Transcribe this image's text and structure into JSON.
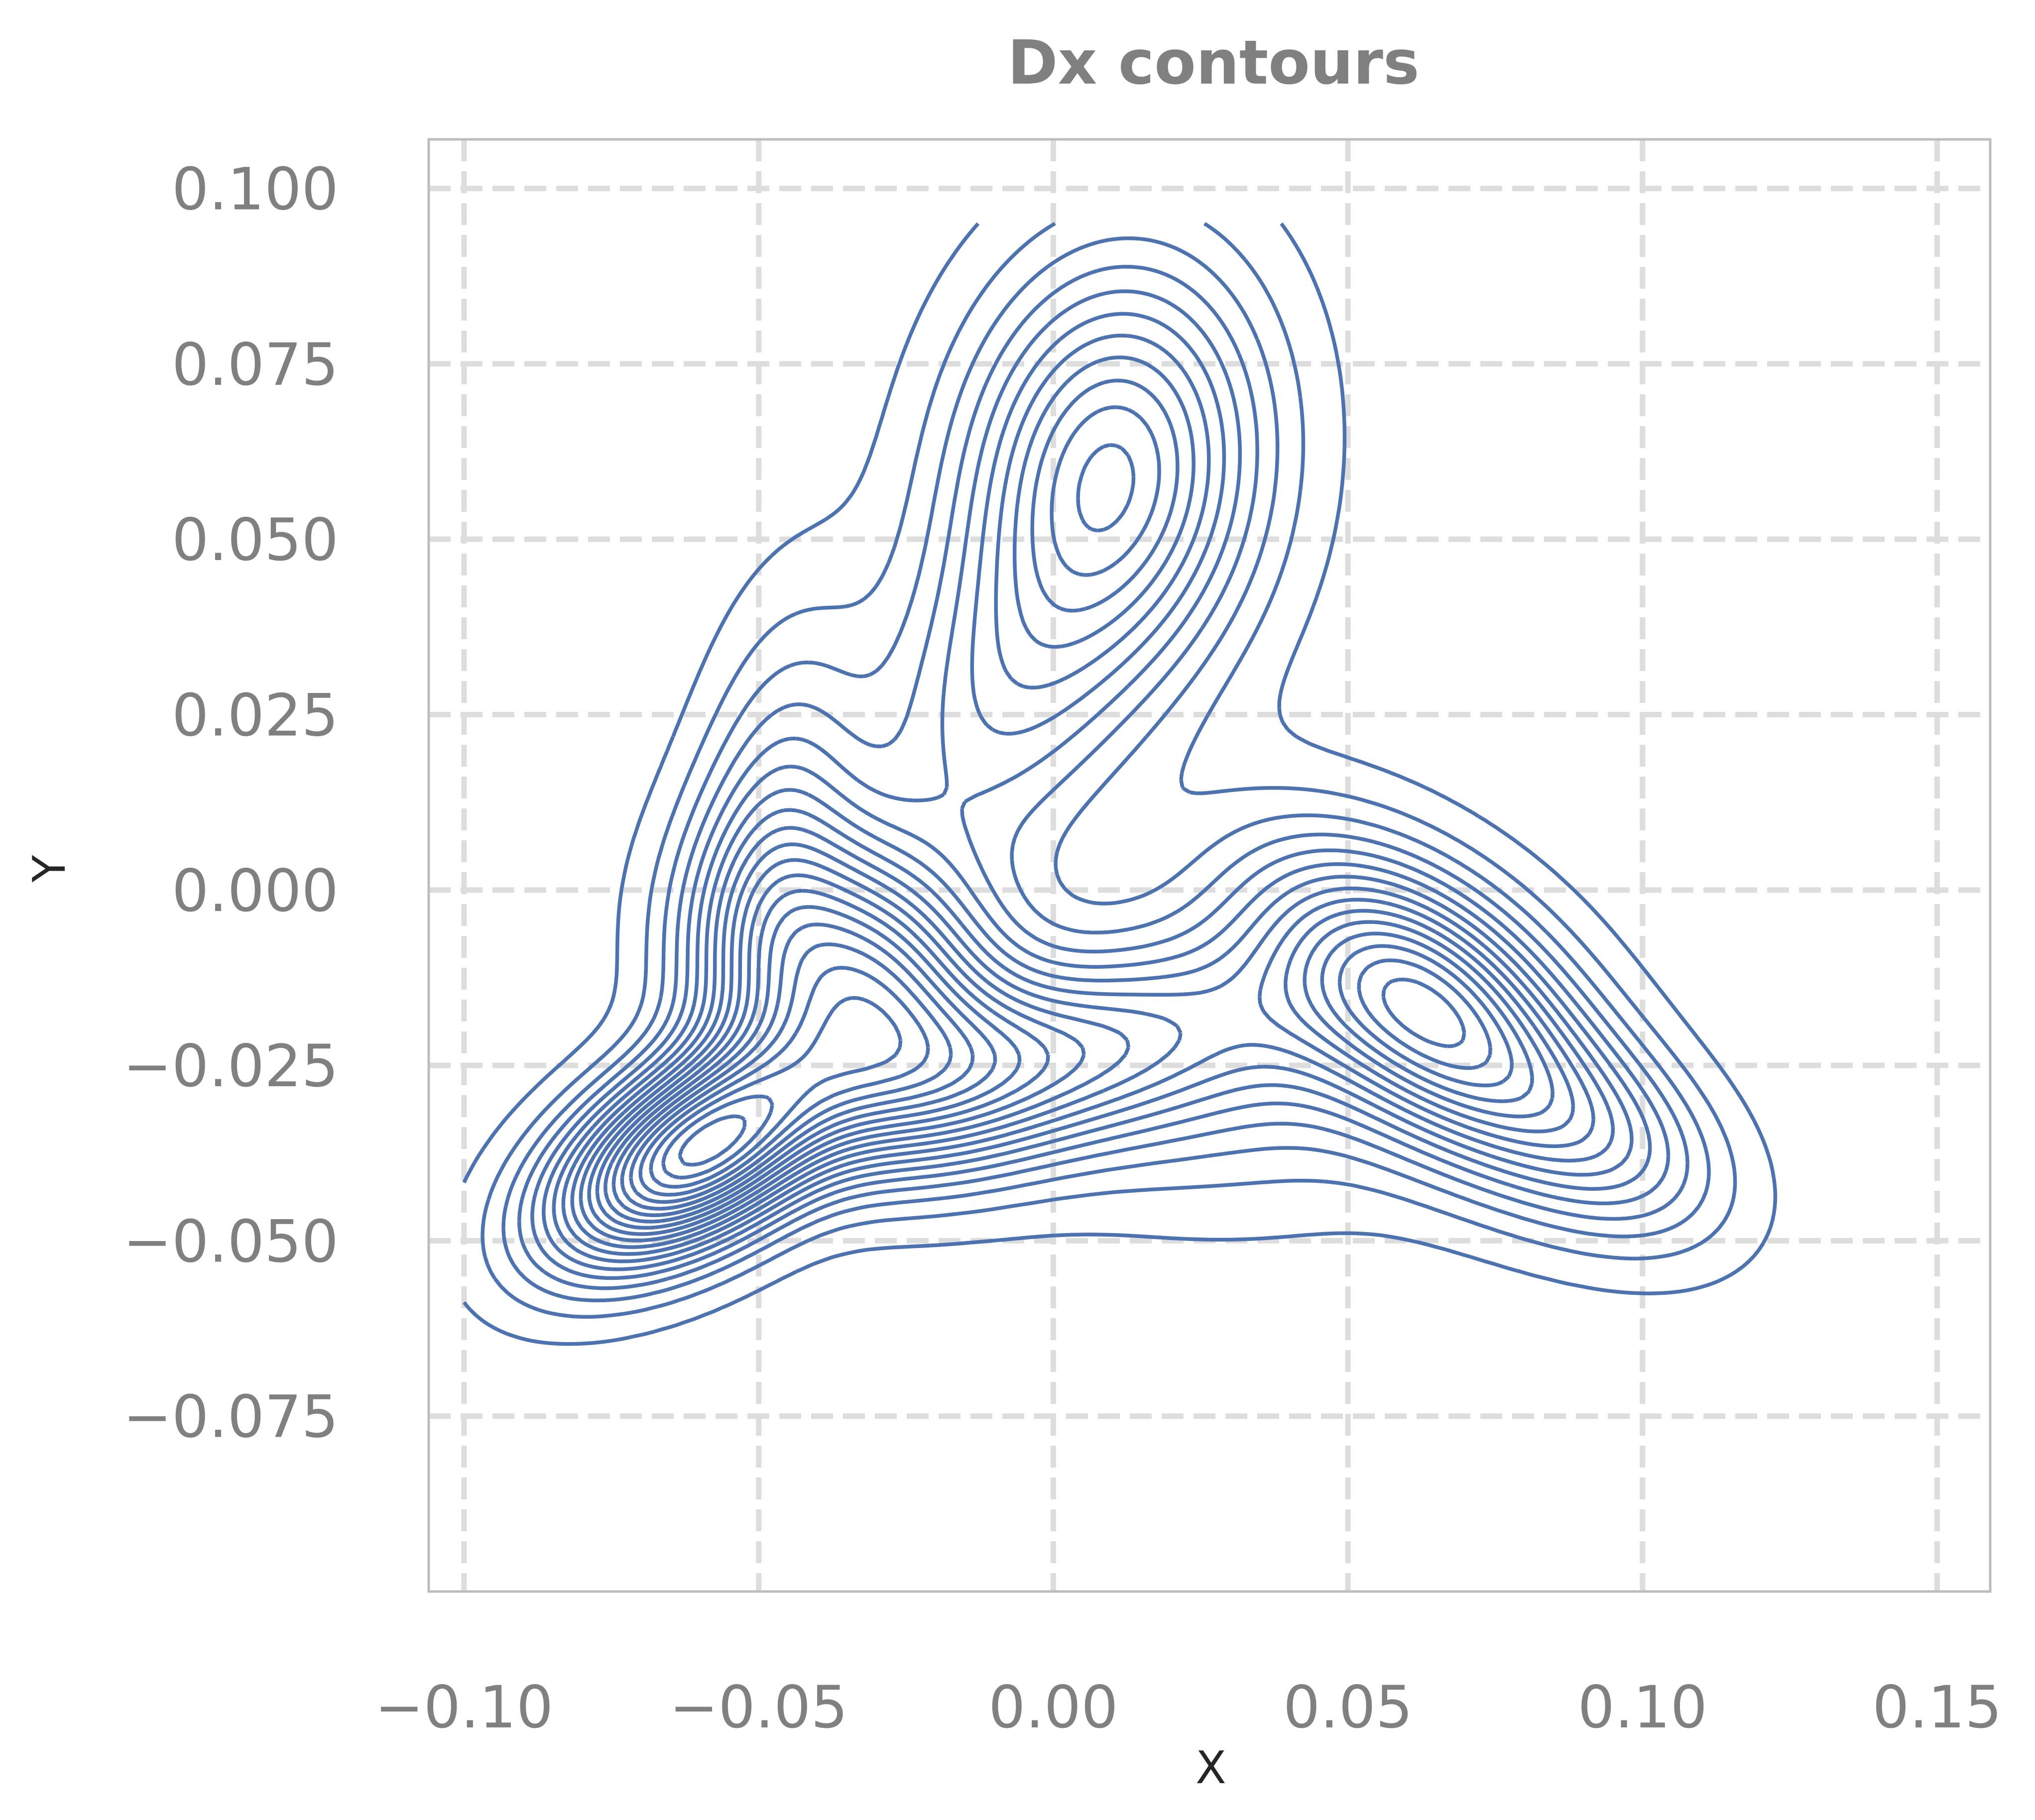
{
  "chart_data": {
    "type": "contour",
    "title": "Dx contours",
    "xlabel": "X",
    "ylabel": "Y",
    "xlim": [
      -0.106,
      0.159
    ],
    "ylim": [
      -0.1,
      0.107
    ],
    "x_ticks": [
      -0.1,
      -0.05,
      0.0,
      0.05,
      0.1,
      0.15
    ],
    "x_tick_labels": [
      "−0.10",
      "−0.05",
      "0.00",
      "0.05",
      "0.10",
      "0.15"
    ],
    "y_ticks": [
      0.1,
      0.075,
      0.05,
      0.025,
      0.0,
      -0.025,
      -0.05,
      -0.075
    ],
    "y_tick_labels": [
      "0.100",
      "0.075",
      "0.050",
      "0.025",
      "0.000",
      "−0.025",
      "−0.050",
      "−0.075"
    ],
    "grid": true,
    "line_color": "#4c72b0",
    "density_peaks": [
      {
        "x": -0.062,
        "y": -0.038
      },
      {
        "x": -0.033,
        "y": -0.013
      },
      {
        "x": 0.065,
        "y": -0.018
      },
      {
        "x": 0.01,
        "y": 0.06
      }
    ]
  }
}
